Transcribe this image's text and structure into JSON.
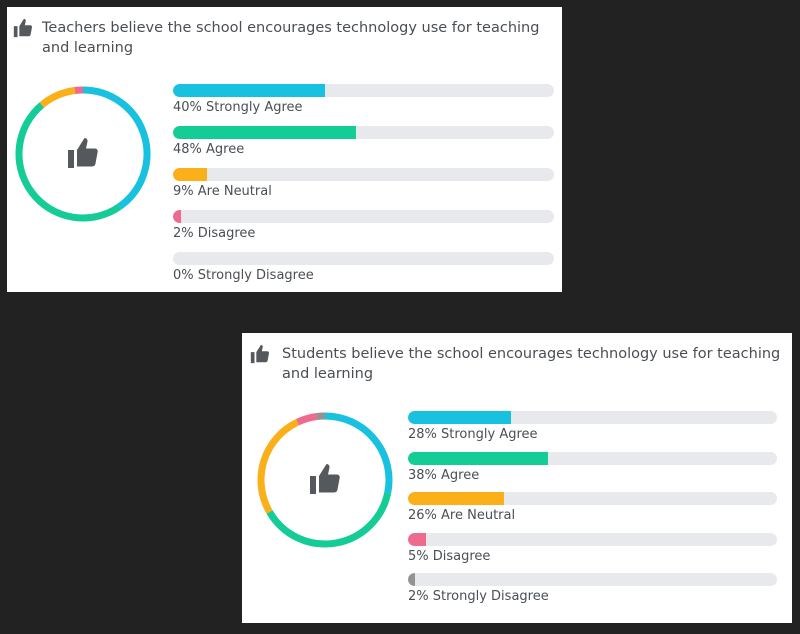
{
  "colors": {
    "strongly_agree": "#18c1e0",
    "agree": "#14cc96",
    "neutral": "#fbaf18",
    "disagree": "#ef6b8e",
    "strongly_disagree": "#939393",
    "track": "#e7e9ec",
    "icon": "#55595e"
  },
  "icons": {
    "header": "thumbs-up-icon",
    "center": "thumbs-up-icon"
  },
  "cards": [
    {
      "title": "Teachers believe the school encourages technology use for teaching and learning",
      "bars": [
        {
          "label": "40% Strongly Agree",
          "value": 40,
          "category": "strongly_agree"
        },
        {
          "label": "48% Agree",
          "value": 48,
          "category": "agree"
        },
        {
          "label": "9% Are Neutral",
          "value": 9,
          "category": "neutral"
        },
        {
          "label": "2% Disagree",
          "value": 2,
          "category": "disagree"
        },
        {
          "label": "0% Strongly Disagree",
          "value": 0,
          "category": "strongly_disagree"
        }
      ]
    },
    {
      "title": "Students believe the school encourages technology use for teaching and learning",
      "bars": [
        {
          "label": "28% Strongly Agree",
          "value": 28,
          "category": "strongly_agree"
        },
        {
          "label": "38% Agree",
          "value": 38,
          "category": "agree"
        },
        {
          "label": "26% Are Neutral",
          "value": 26,
          "category": "neutral"
        },
        {
          "label": "5% Disagree",
          "value": 5,
          "category": "disagree"
        },
        {
          "label": "2% Strongly Disagree",
          "value": 2,
          "category": "strongly_disagree"
        }
      ]
    }
  ],
  "chart_data": [
    {
      "type": "bar",
      "title": "Teachers believe the school encourages technology use for teaching and learning",
      "categories": [
        "Strongly Agree",
        "Agree",
        "Are Neutral",
        "Disagree",
        "Strongly Disagree"
      ],
      "values": [
        40,
        48,
        9,
        2,
        0
      ],
      "ylim": [
        0,
        100
      ],
      "donut": true
    },
    {
      "type": "bar",
      "title": "Students believe the school encourages technology use for teaching and learning",
      "categories": [
        "Strongly Agree",
        "Agree",
        "Are Neutral",
        "Disagree",
        "Strongly Disagree"
      ],
      "values": [
        28,
        38,
        26,
        5,
        2
      ],
      "ylim": [
        0,
        100
      ],
      "donut": true
    }
  ]
}
